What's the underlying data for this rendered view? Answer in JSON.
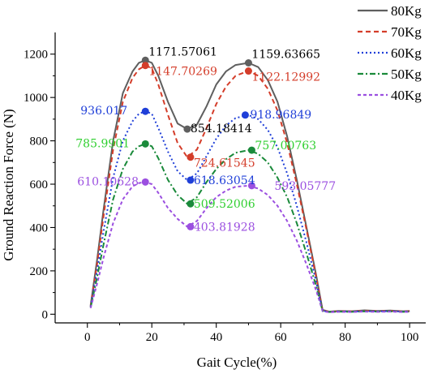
{
  "chart_data": {
    "type": "line",
    "title": "",
    "xlabel": "Gait Cycle(%)",
    "ylabel": "Ground Reaction Force (N)",
    "xlim": [
      -10,
      105
    ],
    "ylim": [
      -40,
      1300
    ],
    "xticks": [
      0,
      20,
      40,
      60,
      80,
      100
    ],
    "yticks": [
      0,
      200,
      400,
      600,
      800,
      1000,
      1200
    ],
    "grid": false,
    "legend": "top-right, outside plot",
    "series": [
      {
        "name": "80Kg",
        "color": "#5f5f5f",
        "dash": "solid",
        "x": [
          1,
          3,
          5,
          8,
          11,
          14,
          16,
          18,
          20,
          22,
          25,
          28,
          31,
          34,
          37,
          40,
          43,
          46,
          50,
          53,
          56,
          59,
          62,
          65,
          68,
          71,
          73,
          75,
          78,
          82,
          86,
          90,
          94,
          98,
          100
        ],
        "y": [
          40,
          250,
          480,
          800,
          1020,
          1120,
          1160,
          1171.57,
          1160,
          1100,
          980,
          880,
          854.18,
          875,
          960,
          1060,
          1120,
          1150,
          1159.64,
          1140,
          1080,
          980,
          820,
          620,
          400,
          180,
          20,
          12,
          15,
          14,
          18,
          15,
          17,
          14,
          15
        ]
      },
      {
        "name": "70Kg",
        "color": "#d43d2a",
        "dash": "6,4",
        "x": [
          1,
          3,
          5,
          8,
          11,
          14,
          16,
          18,
          20,
          22,
          25,
          28,
          31,
          34,
          37,
          40,
          43,
          46,
          50,
          53,
          56,
          59,
          62,
          65,
          68,
          71,
          73,
          75,
          78,
          82,
          86,
          90,
          94,
          98,
          100
        ],
        "y": [
          35,
          230,
          450,
          760,
          980,
          1090,
          1130,
          1147.7,
          1135,
          1060,
          920,
          790,
          724.62,
          760,
          860,
          970,
          1050,
          1100,
          1122.13,
          1100,
          1040,
          940,
          790,
          600,
          390,
          170,
          18,
          12,
          14,
          13,
          16,
          14,
          15,
          13,
          14
        ]
      },
      {
        "name": "60Kg",
        "color": "#1f3fd8",
        "dash": "2,3",
        "x": [
          1,
          3,
          5,
          8,
          11,
          14,
          16,
          18,
          20,
          22,
          25,
          28,
          31,
          34,
          37,
          40,
          43,
          46,
          50,
          53,
          56,
          59,
          62,
          65,
          68,
          71,
          73,
          75,
          78,
          82,
          86,
          90,
          94,
          98,
          100
        ],
        "y": [
          35,
          200,
          380,
          630,
          800,
          890,
          925,
          936.02,
          925,
          860,
          750,
          660,
          618.63,
          650,
          730,
          810,
          870,
          905,
          918.97,
          900,
          850,
          770,
          650,
          500,
          330,
          150,
          16,
          11,
          13,
          12,
          14,
          13,
          14,
          12,
          13
        ]
      },
      {
        "name": "50Kg",
        "color": "#1a8a3a",
        "dash": "7,3,2,3",
        "x": [
          1,
          3,
          5,
          8,
          11,
          14,
          16,
          18,
          20,
          22,
          25,
          28,
          31,
          34,
          37,
          40,
          43,
          46,
          50,
          53,
          56,
          59,
          62,
          65,
          68,
          71,
          73,
          75,
          78,
          82,
          86,
          90,
          94,
          98,
          100
        ],
        "y": [
          30,
          170,
          320,
          530,
          670,
          750,
          775,
          785.99,
          775,
          720,
          620,
          550,
          509.52,
          540,
          610,
          670,
          715,
          745,
          757.01,
          740,
          700,
          630,
          540,
          420,
          280,
          130,
          15,
          10,
          12,
          11,
          13,
          12,
          13,
          11,
          12
        ]
      },
      {
        "name": "40Kg",
        "color": "#9b4fe0",
        "dash": "4,3",
        "x": [
          1,
          3,
          5,
          8,
          11,
          14,
          16,
          18,
          20,
          22,
          25,
          28,
          31,
          34,
          37,
          40,
          43,
          46,
          50,
          53,
          56,
          59,
          62,
          65,
          68,
          71,
          73,
          75,
          78,
          82,
          86,
          90,
          94,
          98,
          100
        ],
        "y": [
          28,
          140,
          260,
          420,
          530,
          590,
          605,
          610.1,
          600,
          560,
          490,
          440,
          403.82,
          430,
          490,
          540,
          570,
          588,
          593.06,
          580,
          550,
          500,
          430,
          340,
          230,
          110,
          14,
          9,
          11,
          10,
          12,
          11,
          12,
          10,
          11
        ]
      }
    ],
    "annotations": [
      {
        "text": "1171.57061",
        "x": 18,
        "y": 1171.57,
        "series": 0,
        "color": "#000000",
        "label_dx": 4,
        "label_dy": -6
      },
      {
        "text": "1159.63665",
        "x": 50,
        "y": 1159.64,
        "series": 0,
        "color": "#000000",
        "label_dx": 4,
        "label_dy": -6
      },
      {
        "text": "854.18414",
        "x": 31,
        "y": 854.18,
        "series": 0,
        "color": "#000000",
        "label_dx": 4,
        "label_dy": 4
      },
      {
        "text": "1147.70269",
        "x": 18,
        "y": 1147.7,
        "series": 1,
        "color": "#d43d2a",
        "label_dx": 4,
        "label_dy": 12
      },
      {
        "text": "1122.12992",
        "x": 50,
        "y": 1122.13,
        "series": 1,
        "color": "#d43d2a",
        "label_dx": 4,
        "label_dy": 12
      },
      {
        "text": "724.61545",
        "x": 32,
        "y": 724.62,
        "series": 1,
        "color": "#d43d2a",
        "label_dx": 4,
        "label_dy": 12
      },
      {
        "text": "936.017",
        "x": 18,
        "y": 936.02,
        "series": 2,
        "color": "#1f3fd8",
        "label_dx": -80,
        "label_dy": 4
      },
      {
        "text": "918.96849",
        "x": 49,
        "y": 918.97,
        "series": 2,
        "color": "#1f3fd8",
        "label_dx": 6,
        "label_dy": 4
      },
      {
        "text": "618.63054",
        "x": 32,
        "y": 618.63,
        "series": 2,
        "color": "#1f3fd8",
        "label_dx": 4,
        "label_dy": 5
      },
      {
        "text": "785.9901",
        "x": 18,
        "y": 785.99,
        "series": 3,
        "color": "#2fcf2f",
        "label_dx": -86,
        "label_dy": 4
      },
      {
        "text": "757.00763",
        "x": 51,
        "y": 757.01,
        "series": 3,
        "color": "#2fcf2f",
        "label_dx": 4,
        "label_dy": -1
      },
      {
        "text": "509.52006",
        "x": 32,
        "y": 509.52,
        "series": 3,
        "color": "#2fcf2f",
        "label_dx": 4,
        "label_dy": 5
      },
      {
        "text": "610.10628",
        "x": 18,
        "y": 610.1,
        "series": 4,
        "color": "#9b4fe0",
        "label_dx": -84,
        "label_dy": 4
      },
      {
        "text": "593.05777",
        "x": 51,
        "y": 593.06,
        "series": 4,
        "color": "#9b4fe0",
        "label_dx": 28,
        "label_dy": 5
      },
      {
        "text": "403.81928",
        "x": 32,
        "y": 403.82,
        "series": 4,
        "color": "#9b4fe0",
        "label_dx": 4,
        "label_dy": 5
      }
    ]
  }
}
